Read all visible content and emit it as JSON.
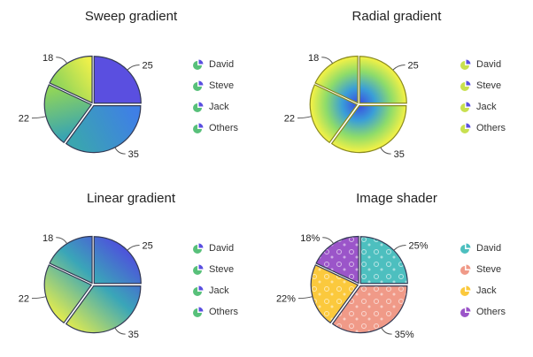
{
  "chart_data": [
    {
      "type": "pie",
      "title": "Sweep gradient",
      "shader": "sweep",
      "categories": [
        "David",
        "Steve",
        "Jack",
        "Others"
      ],
      "values": [
        25,
        35,
        22,
        18
      ],
      "labels": [
        "25",
        "35",
        "22",
        "18"
      ]
    },
    {
      "type": "pie",
      "title": "Radial gradient",
      "shader": "radial",
      "categories": [
        "David",
        "Steve",
        "Jack",
        "Others"
      ],
      "values": [
        25,
        35,
        22,
        18
      ],
      "labels": [
        "25",
        "35",
        "22",
        "18"
      ]
    },
    {
      "type": "pie",
      "title": "Linear gradient",
      "shader": "linear",
      "categories": [
        "David",
        "Steve",
        "Jack",
        "Others"
      ],
      "values": [
        25,
        35,
        22,
        18
      ],
      "labels": [
        "25",
        "35",
        "22",
        "18"
      ]
    },
    {
      "type": "pie",
      "title": "Image shader",
      "shader": "image",
      "categories": [
        "David",
        "Steve",
        "Jack",
        "Others"
      ],
      "values": [
        25,
        35,
        22,
        18
      ],
      "labels": [
        "25%",
        "35%",
        "22%",
        "18%"
      ],
      "colors": [
        "#4dbfbf",
        "#f09a88",
        "#fbc93d",
        "#9b55c9"
      ]
    }
  ]
}
